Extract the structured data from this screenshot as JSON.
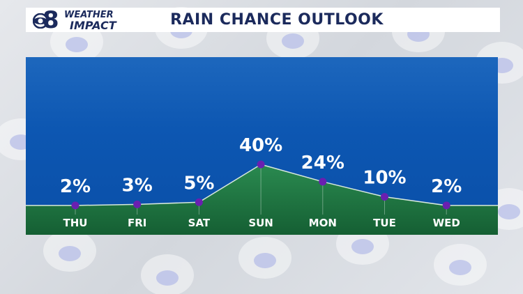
{
  "header": {
    "logo_top": "WEATHER",
    "logo_bottom": "IMPACT",
    "logo_number": "8",
    "title": "RAIN CHANCE OUTLOOK"
  },
  "colors": {
    "header_text": "#1b2a5c",
    "panel_blue": "#0d57b2",
    "area_green": "#1f7a45",
    "point_purple": "#6a1fb0"
  },
  "chart_data": {
    "type": "area",
    "categories": [
      "THU",
      "FRI",
      "SAT",
      "SUN",
      "MON",
      "TUE",
      "WED"
    ],
    "values": [
      2,
      3,
      5,
      40,
      24,
      10,
      2
    ],
    "value_labels": [
      "2%",
      "3%",
      "5%",
      "40%",
      "24%",
      "10%",
      "2%"
    ],
    "ylim": [
      0,
      40
    ],
    "grid": false,
    "title": "RAIN CHANCE OUTLOOK"
  }
}
